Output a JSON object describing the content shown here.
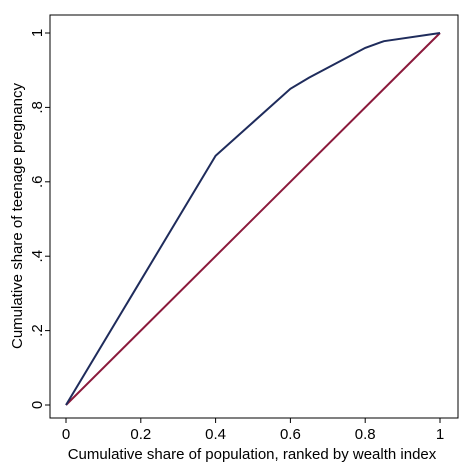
{
  "chart_data": {
    "type": "line",
    "xlabel": "Cumulative share of population, ranked by wealth index",
    "ylabel": "Cumulative share of teenage pregnancy",
    "series": [
      {
        "color": "#1f2c5c",
        "x": [
          0,
          0.4,
          0.6,
          0.65,
          0.8,
          0.85,
          1
        ],
        "values": [
          0,
          0.67,
          0.85,
          0.88,
          0.96,
          0.978,
          1
        ]
      },
      {
        "color": "#8b1a3c",
        "x": [
          0,
          1
        ],
        "values": [
          0,
          1
        ]
      }
    ],
    "xlim": [
      0,
      1
    ],
    "ylim": [
      0,
      1
    ],
    "xticks": [
      0,
      0.2,
      0.4,
      0.6,
      0.8,
      1
    ],
    "yticks": [
      0,
      {
        "value": 0.2,
        "label": ".2"
      },
      {
        "value": 0.4,
        "label": ".4"
      },
      {
        "value": 0.6,
        "label": ".6"
      },
      {
        "value": 0.8,
        "label": ".8"
      },
      1
    ]
  }
}
